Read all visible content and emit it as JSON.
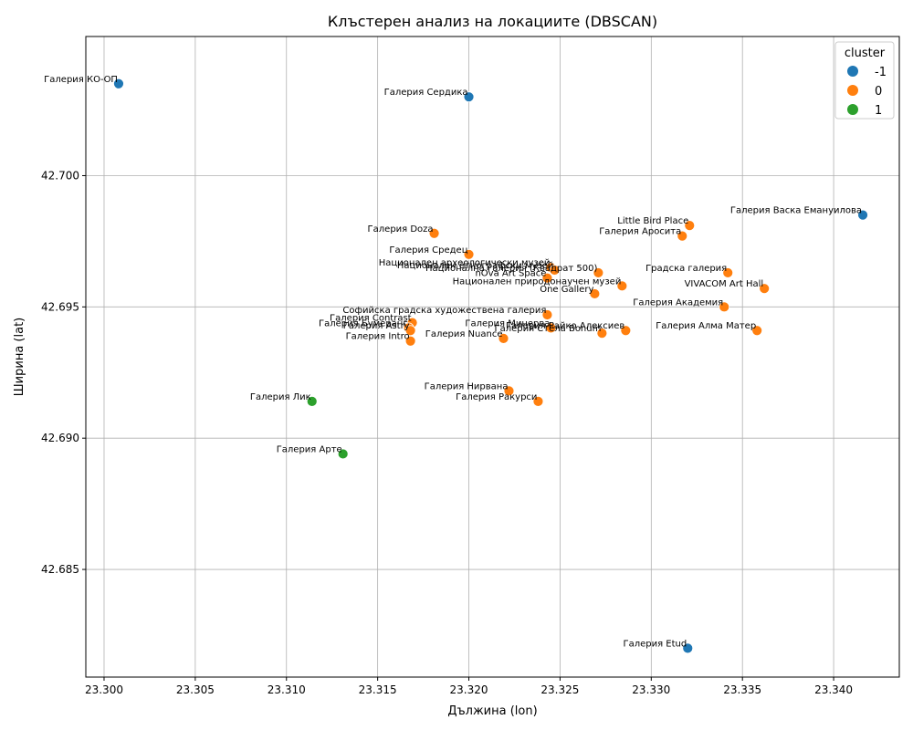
{
  "chart_data": {
    "type": "scatter",
    "title": "Клъстерен анализ на локациите (DBSCAN)",
    "xlabel": "Дължина (lon)",
    "ylabel": "Ширина (lat)",
    "xlim": [
      23.299,
      23.3436
    ],
    "ylim": [
      42.6809,
      42.7053
    ],
    "xticks": [
      23.3,
      23.305,
      23.31,
      23.315,
      23.32,
      23.325,
      23.33,
      23.335,
      23.34
    ],
    "xtick_labels": [
      "23.300",
      "23.305",
      "23.310",
      "23.315",
      "23.320",
      "23.325",
      "23.330",
      "23.335",
      "23.340"
    ],
    "yticks": [
      42.685,
      42.69,
      42.695,
      42.7
    ],
    "ytick_labels": [
      "42.685",
      "42.690",
      "42.695",
      "42.700"
    ],
    "grid": true,
    "legend": {
      "title": "cluster",
      "position": "top-right",
      "entries": [
        {
          "label": "-1",
          "cluster": -1
        },
        {
          "label": "0",
          "cluster": 0
        },
        {
          "label": "1",
          "cluster": 1
        }
      ]
    },
    "colors": {
      "-1": "#1f77b4",
      "0": "#ff7f0e",
      "1": "#2ca02c"
    },
    "points": [
      {
        "name": "Галерия КО-ОП",
        "x": 23.3008,
        "y": 42.7035,
        "cluster": -1
      },
      {
        "name": "Галерия Сердика",
        "x": 23.32,
        "y": 42.703,
        "cluster": -1
      },
      {
        "name": "Галерия Васка Емануилова",
        "x": 23.3416,
        "y": 42.6985,
        "cluster": -1
      },
      {
        "name": "Галерия Etud",
        "x": 23.332,
        "y": 42.682,
        "cluster": -1
      },
      {
        "name": "Little Bird Place",
        "x": 23.3321,
        "y": 42.6981,
        "cluster": 0
      },
      {
        "name": "Галерия Аросита",
        "x": 23.3317,
        "y": 42.6977,
        "cluster": 0
      },
      {
        "name": "Галерия Doza",
        "x": 23.3181,
        "y": 42.6978,
        "cluster": 0
      },
      {
        "name": "Галерия Средец",
        "x": 23.32,
        "y": 42.697,
        "cluster": 0
      },
      {
        "name": "Национален археологически музей",
        "x": 23.3245,
        "y": 42.6965,
        "cluster": 0
      },
      {
        "name": "Национален етнографски музей",
        "x": 23.3247,
        "y": 42.6964,
        "cluster": 0
      },
      {
        "name": "Национална галерия (Квадрат 500)",
        "x": 23.3271,
        "y": 42.6963,
        "cluster": 0
      },
      {
        "name": "Градска галерия",
        "x": 23.3342,
        "y": 42.6963,
        "cluster": 0
      },
      {
        "name": "nOva Art Space",
        "x": 23.3243,
        "y": 42.6961,
        "cluster": 0
      },
      {
        "name": "Национален природонаучен музей",
        "x": 23.3284,
        "y": 42.6958,
        "cluster": 0
      },
      {
        "name": "VIVACOM Art Hall",
        "x": 23.3362,
        "y": 42.6957,
        "cluster": 0
      },
      {
        "name": "One Gallery",
        "x": 23.3269,
        "y": 42.6955,
        "cluster": 0
      },
      {
        "name": "Галерия Академия",
        "x": 23.334,
        "y": 42.695,
        "cluster": 0
      },
      {
        "name": "Софийска градска художествена галерия",
        "x": 23.3243,
        "y": 42.6947,
        "cluster": 0
      },
      {
        "name": "Галерия Contrast",
        "x": 23.3169,
        "y": 42.6944,
        "cluster": 0
      },
      {
        "name": "Галерия Бумеранг",
        "x": 23.3167,
        "y": 42.6942,
        "cluster": 0
      },
      {
        "name": "Галерия Astry",
        "x": 23.3168,
        "y": 42.6941,
        "cluster": 0
      },
      {
        "name": "Галерия Минерва",
        "x": 23.3245,
        "y": 42.6942,
        "cluster": 0
      },
      {
        "name": "Галерия Райко Алексиев",
        "x": 23.3286,
        "y": 42.6941,
        "cluster": 0
      },
      {
        "name": "Галерия Стела Bonum",
        "x": 23.3273,
        "y": 42.694,
        "cluster": 0
      },
      {
        "name": "Галерия Алма Матер",
        "x": 23.3358,
        "y": 42.6941,
        "cluster": 0
      },
      {
        "name": "Галерия Nuance",
        "x": 23.3219,
        "y": 42.6938,
        "cluster": 0
      },
      {
        "name": "Галерия Intro",
        "x": 23.3168,
        "y": 42.6937,
        "cluster": 0
      },
      {
        "name": "Галерия Нирвана",
        "x": 23.3222,
        "y": 42.6918,
        "cluster": 0
      },
      {
        "name": "Галерия Ракурси",
        "x": 23.3238,
        "y": 42.6914,
        "cluster": 0
      },
      {
        "name": "Галерия Лик",
        "x": 23.3114,
        "y": 42.6914,
        "cluster": 1
      },
      {
        "name": "Галерия Арте",
        "x": 23.3131,
        "y": 42.6894,
        "cluster": 1
      }
    ]
  }
}
